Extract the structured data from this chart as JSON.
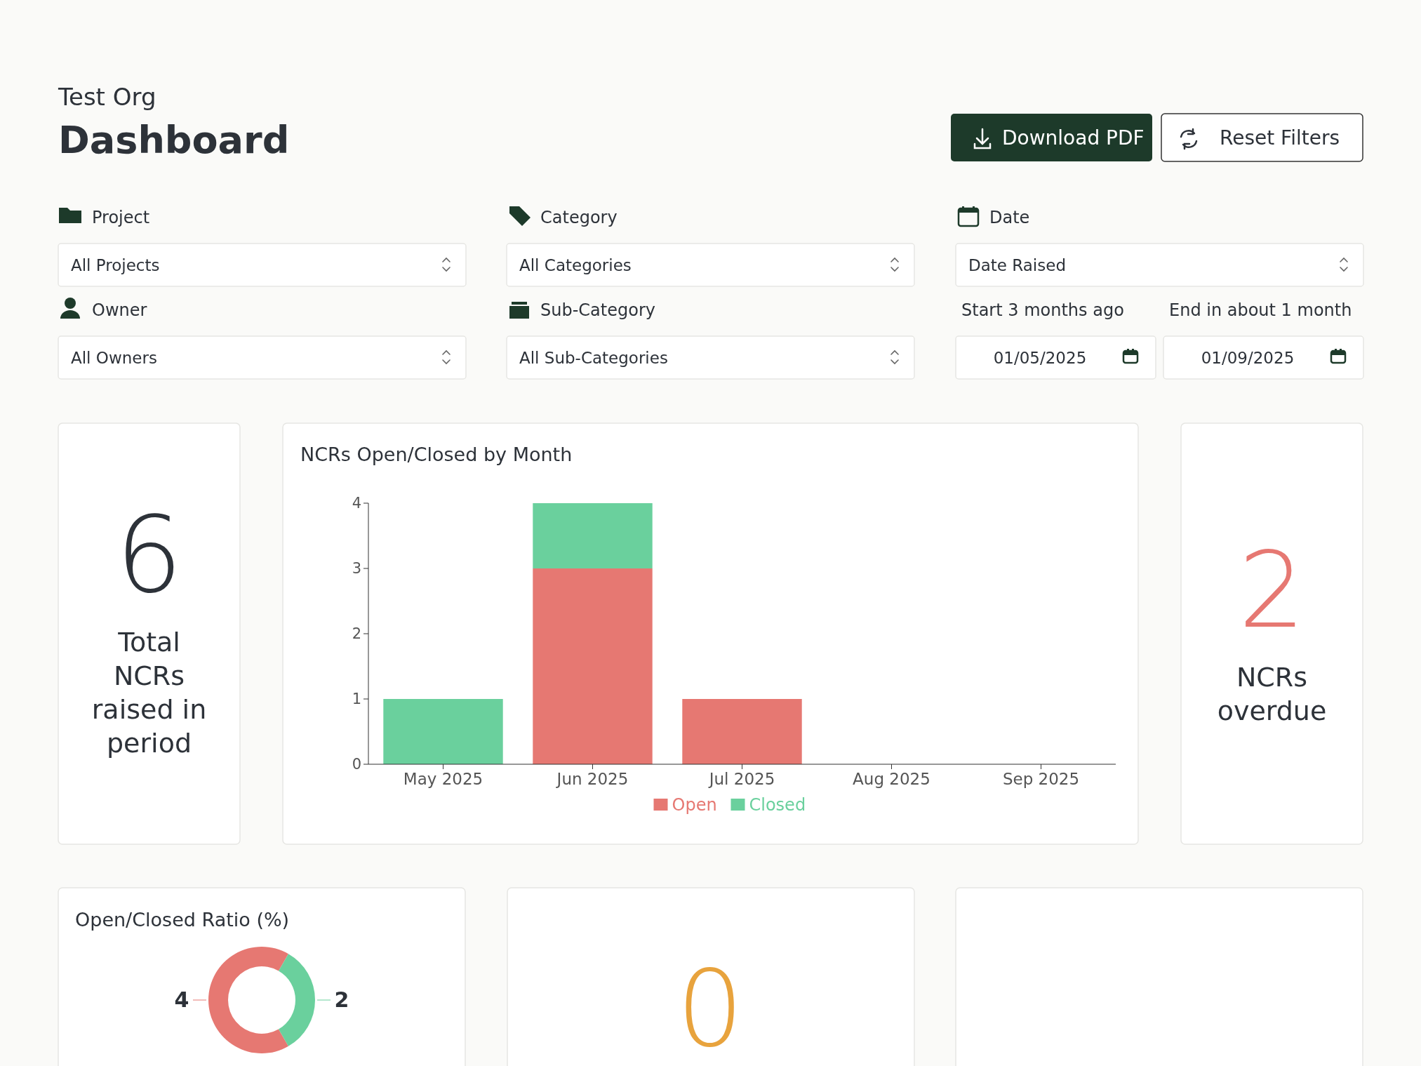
{
  "chart_data": [
    {
      "type": "other",
      "title": "Dashboard",
      "subtitle": "Test Org",
      "annotations": [
        "Download PDF",
        "Reset Filters",
        "Project",
        "All Projects",
        "Category",
        "All Categories",
        "Date",
        "Date Raised",
        "Owner",
        "All Owners",
        "Sub-Category",
        "All Sub-Categories",
        "Start 3 months ago",
        "01/05/2025",
        "End in about 1 month",
        "01/09/2025"
      ]
    },
    {
      "type": "other",
      "color": "#2d3239",
      "annotations": [
        "6",
        "Total NCRs raised in period"
      ]
    },
    {
      "type": "bar",
      "title": "NCRs Open/Closed by Month",
      "stacked": true,
      "categories": [
        "May 2025",
        "Jun 2025",
        "Jul 2025",
        "Aug 2025",
        "Sep 2025"
      ],
      "ylim": [
        0,
        4
      ],
      "yticks": [
        0,
        1,
        2,
        3,
        4
      ],
      "legend": "bottom",
      "series": [
        {
          "name": "Open",
          "color": "#e67872",
          "values": [
            0,
            3,
            1,
            0,
            0
          ]
        },
        {
          "name": "Closed",
          "color": "#6ad09d",
          "values": [
            1,
            1,
            0,
            0,
            0
          ]
        }
      ]
    },
    {
      "type": "other",
      "color": "#e67872",
      "annotations": [
        "2",
        "NCRs overdue"
      ]
    },
    {
      "type": "donut",
      "title": "Open/Closed Ratio (%)",
      "categories": [
        null,
        null
      ],
      "values": [
        4,
        2
      ],
      "colors": [
        "#e67872",
        "#6ad09d"
      ],
      "data_labels": true
    },
    {
      "type": "other",
      "color": "#e8a33d",
      "annotations": [
        "0"
      ]
    }
  ]
}
